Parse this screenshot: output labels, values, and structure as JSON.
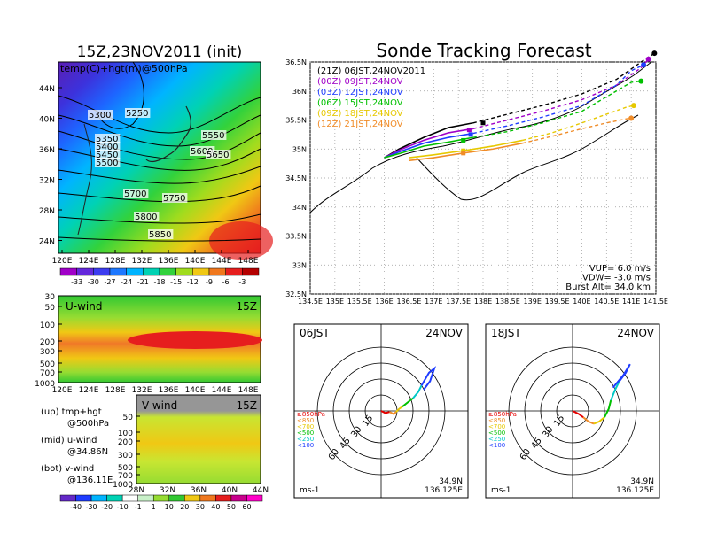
{
  "left": {
    "title": "15Z,23NOV2011 (init)",
    "map": {
      "label": "temp(C)+hgt(m)@500hPa",
      "lat_ticks": [
        "44N",
        "40N",
        "36N",
        "32N",
        "28N",
        "24N"
      ],
      "lon_ticks": [
        "120E",
        "124E",
        "128E",
        "132E",
        "136E",
        "140E",
        "144E",
        "148E"
      ],
      "contour_labels": [
        "5300",
        "5250",
        "5350",
        "5400",
        "5450",
        "5500",
        "5550",
        "5600",
        "5650",
        "5700",
        "5750",
        "5800",
        "5850"
      ]
    },
    "temp_colorbar": [
      "-33",
      "-30",
      "-27",
      "-24",
      "-21",
      "-18",
      "-15",
      "-12",
      "-9",
      "-6",
      "-3"
    ],
    "u_panel": {
      "label": "U-wind",
      "time": "15Z",
      "p_ticks": [
        "30",
        "50",
        "100",
        "200",
        "300",
        "500",
        "700",
        "1000"
      ],
      "lon_ticks": [
        "120E",
        "124E",
        "128E",
        "132E",
        "136E",
        "140E",
        "144E",
        "148E"
      ]
    },
    "v_panel": {
      "label": "V-wind",
      "time": "15Z",
      "p_ticks": [
        "50",
        "100",
        "200",
        "300",
        "500",
        "700",
        "1000"
      ],
      "lat_ticks": [
        "28N",
        "32N",
        "36N",
        "40N",
        "44N"
      ]
    },
    "notes": [
      {
        "head": "(up) tmp+hgt",
        "sub": "@500hPa"
      },
      {
        "head": "(mid) u-wind",
        "sub": "@34.86N"
      },
      {
        "head": "(bot) v-wind",
        "sub": "@136.11E"
      }
    ],
    "wind_colorbar": [
      "-40",
      "-30",
      "-20",
      "-10",
      "-1",
      "1",
      "10",
      "20",
      "30",
      "40",
      "50",
      "60"
    ]
  },
  "right": {
    "title": "Sonde Tracking Forecast",
    "legend": [
      {
        "text": "(21Z)  06JST,24NOV2011",
        "color": "#000000"
      },
      {
        "text": "(00Z)  09JST,24NOV",
        "color": "#a000c8"
      },
      {
        "text": "(03Z)  12JST,24NOV",
        "color": "#1e3cff"
      },
      {
        "text": "(06Z)  15JST,24NOV",
        "color": "#00c000"
      },
      {
        "text": "(09Z)  18JST,24NOV",
        "color": "#e6c800"
      },
      {
        "text": "(12Z)  21JST,24NOV",
        "color": "#f08c28"
      }
    ],
    "params": [
      "VUP=  6.0  m/s",
      "VDW= -3.0  m/s",
      "Burst Alt=  34.0  km"
    ]
  },
  "hodographs": [
    {
      "time": "06JST",
      "date": "24NOV",
      "lat": "34.9N",
      "lon": "136.125E",
      "unit": "ms-1"
    },
    {
      "time": "18JST",
      "date": "24NOV",
      "lat": "34.9N",
      "lon": "136.125E",
      "unit": "ms-1"
    }
  ],
  "hodo_legend": [
    {
      "text": "≥850hPa",
      "color": "#e60000"
    },
    {
      "text": "<850",
      "color": "#f08c28"
    },
    {
      "text": "<700",
      "color": "#e6c800"
    },
    {
      "text": "<500",
      "color": "#00c000"
    },
    {
      "text": "<250",
      "color": "#00c8c8"
    },
    {
      "text": "<100",
      "color": "#1e3cff"
    }
  ],
  "hodo_ring_labels": [
    "15",
    "30",
    "45",
    "60"
  ],
  "chart_data": [
    {
      "type": "line",
      "title": "Sonde Tracking Forecast",
      "xlim": [
        134.5,
        141.5
      ],
      "ylim": [
        32.5,
        36.5
      ],
      "x_ticks": [
        "134.5E",
        "135E",
        "135.5E",
        "136E",
        "136.5E",
        "137E",
        "137.5E",
        "138E",
        "138.5E",
        "139E",
        "139.5E",
        "140E",
        "140.5E",
        "141E",
        "141.5E"
      ],
      "y_ticks": [
        "36.5N",
        "36N",
        "35.5N",
        "35N",
        "34.5N",
        "34N",
        "33.5N",
        "33N",
        "32.5N"
      ],
      "grid": true,
      "legend_position": "top-left",
      "series": [
        {
          "name": "(21Z) 06JST,24NOV2011",
          "points": [
            [
              136.0,
              34.85
            ],
            [
              136.3,
              35.0
            ],
            [
              136.8,
              35.2
            ],
            [
              137.3,
              35.37
            ],
            [
              137.8,
              35.45
            ],
            [
              138.5,
              35.6
            ],
            [
              139.2,
              35.75
            ],
            [
              140.0,
              35.95
            ],
            [
              140.7,
              36.2
            ],
            [
              141.2,
              36.5
            ],
            [
              141.47,
              36.65
            ]
          ],
          "marker": [
            138.0,
            35.45
          ]
        },
        {
          "name": "(00Z) 09JST,24NOV",
          "points": [
            [
              136.0,
              34.85
            ],
            [
              136.3,
              34.98
            ],
            [
              136.8,
              35.15
            ],
            [
              137.3,
              35.28
            ],
            [
              137.8,
              35.35
            ],
            [
              138.5,
              35.5
            ],
            [
              139.2,
              35.65
            ],
            [
              140.0,
              35.85
            ],
            [
              140.7,
              36.1
            ],
            [
              141.2,
              36.4
            ],
            [
              141.35,
              36.55
            ]
          ],
          "marker": [
            137.72,
            35.33
          ]
        },
        {
          "name": "(03Z) 12JST,24NOV",
          "points": [
            [
              136.0,
              34.85
            ],
            [
              136.3,
              34.95
            ],
            [
              136.8,
              35.1
            ],
            [
              137.3,
              35.2
            ],
            [
              137.8,
              35.27
            ],
            [
              138.5,
              35.4
            ],
            [
              139.2,
              35.55
            ],
            [
              140.0,
              35.75
            ],
            [
              140.7,
              36.1
            ],
            [
              141.0,
              36.35
            ],
            [
              141.25,
              36.45
            ]
          ],
          "marker": [
            137.75,
            35.25
          ]
        },
        {
          "name": "(06Z) 15JST,24NOV",
          "points": [
            [
              136.0,
              34.85
            ],
            [
              136.3,
              34.92
            ],
            [
              136.8,
              35.05
            ],
            [
              137.3,
              35.12
            ],
            [
              137.8,
              35.2
            ],
            [
              138.5,
              35.3
            ],
            [
              139.2,
              35.45
            ],
            [
              140.0,
              35.65
            ],
            [
              140.6,
              35.95
            ],
            [
              141.0,
              36.15
            ],
            [
              141.2,
              36.17
            ]
          ],
          "marker": [
            137.6,
            35.15
          ]
        },
        {
          "name": "(09Z) 18JST,24NOV",
          "points": [
            [
              136.5,
              34.85
            ],
            [
              137.0,
              34.9
            ],
            [
              137.6,
              34.97
            ],
            [
              138.2,
              35.05
            ],
            [
              138.8,
              35.15
            ],
            [
              139.4,
              35.28
            ],
            [
              140.0,
              35.45
            ],
            [
              140.5,
              35.6
            ],
            [
              140.9,
              35.72
            ],
            [
              141.05,
              35.75
            ]
          ],
          "marker": [
            137.6,
            34.97
          ]
        },
        {
          "name": "(12Z) 21JST,24NOV",
          "points": [
            [
              136.5,
              34.8
            ],
            [
              137.0,
              34.85
            ],
            [
              137.6,
              34.93
            ],
            [
              138.2,
              35.0
            ],
            [
              138.8,
              35.1
            ],
            [
              139.4,
              35.22
            ],
            [
              140.0,
              35.35
            ],
            [
              140.5,
              35.45
            ],
            [
              140.9,
              35.52
            ],
            [
              141.0,
              35.53
            ]
          ],
          "marker": [
            137.6,
            34.93
          ]
        }
      ]
    },
    {
      "type": "line",
      "title": "06JST 24NOV hodograph",
      "unit": "ms-1",
      "range": 70,
      "series": [
        {
          "name": "≥850hPa",
          "points": [
            [
              0,
              0
            ],
            [
              4,
              -2
            ],
            [
              8,
              -1
            ]
          ]
        },
        {
          "name": "<850",
          "points": [
            [
              8,
              -1
            ],
            [
              12,
              -3
            ],
            [
              14,
              -1
            ]
          ]
        },
        {
          "name": "<700",
          "points": [
            [
              14,
              -1
            ],
            [
              17,
              2
            ],
            [
              20,
              4
            ]
          ]
        },
        {
          "name": "<500",
          "points": [
            [
              20,
              4
            ],
            [
              25,
              8
            ],
            [
              30,
              12
            ]
          ]
        },
        {
          "name": "<250",
          "points": [
            [
              30,
              12
            ],
            [
              35,
              18
            ],
            [
              38,
              24
            ]
          ]
        },
        {
          "name": "<100",
          "points": [
            [
              38,
              24
            ],
            [
              45,
              36
            ],
            [
              50,
              40
            ],
            [
              46,
              28
            ],
            [
              40,
              20
            ]
          ]
        }
      ]
    },
    {
      "type": "line",
      "title": "18JST 24NOV hodograph",
      "unit": "ms-1",
      "range": 70,
      "series": [
        {
          "name": "≥850hPa",
          "points": [
            [
              0,
              0
            ],
            [
              6,
              -3
            ],
            [
              10,
              -6
            ]
          ]
        },
        {
          "name": "<850",
          "points": [
            [
              10,
              -6
            ],
            [
              15,
              -10
            ],
            [
              20,
              -12
            ]
          ]
        },
        {
          "name": "<700",
          "points": [
            [
              20,
              -12
            ],
            [
              25,
              -10
            ],
            [
              30,
              -6
            ]
          ]
        },
        {
          "name": "<500",
          "points": [
            [
              30,
              -6
            ],
            [
              34,
              2
            ],
            [
              36,
              10
            ]
          ]
        },
        {
          "name": "<250",
          "points": [
            [
              36,
              10
            ],
            [
              40,
              20
            ],
            [
              44,
              28
            ]
          ]
        },
        {
          "name": "<100",
          "points": [
            [
              44,
              28
            ],
            [
              50,
              36
            ],
            [
              54,
              44
            ],
            [
              48,
              34
            ],
            [
              38,
              22
            ]
          ]
        }
      ]
    }
  ]
}
